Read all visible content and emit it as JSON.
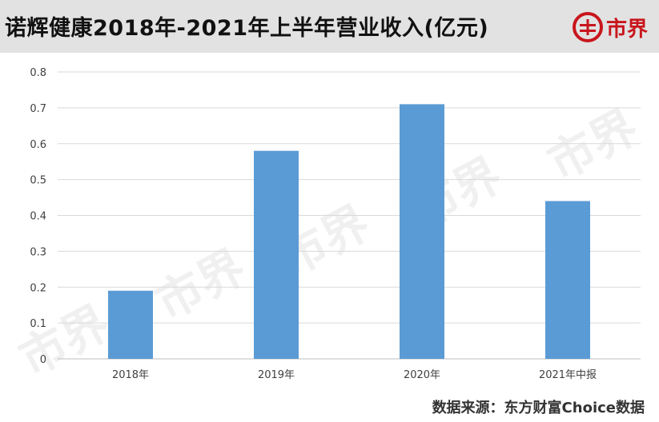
{
  "title": "诺辉健康2018年-2021年上半年营业收入(亿元)",
  "brand": {
    "name": "市界",
    "icon": "brand-logo-icon",
    "color": "#c8161d"
  },
  "watermark_text": "市界",
  "source": "数据来源：东方财富Choice数据",
  "colors": {
    "bar": "#5b9bd5",
    "grid": "#d9d9d9",
    "axis_text": "#404040"
  },
  "chart_data": {
    "type": "bar",
    "title": "诺辉健康2018年-2021年上半年营业收入(亿元)",
    "categories": [
      "2018年",
      "2019年",
      "2020年",
      "2021年中报"
    ],
    "values": [
      0.19,
      0.58,
      0.71,
      0.44
    ],
    "ylim": [
      0,
      0.8
    ],
    "yticks": [
      "0",
      "0.1",
      "0.2",
      "0.3",
      "0.4",
      "0.5",
      "0.6",
      "0.7",
      "0.8"
    ],
    "xlabel": "",
    "ylabel": "",
    "grid": true,
    "legend": "none"
  }
}
